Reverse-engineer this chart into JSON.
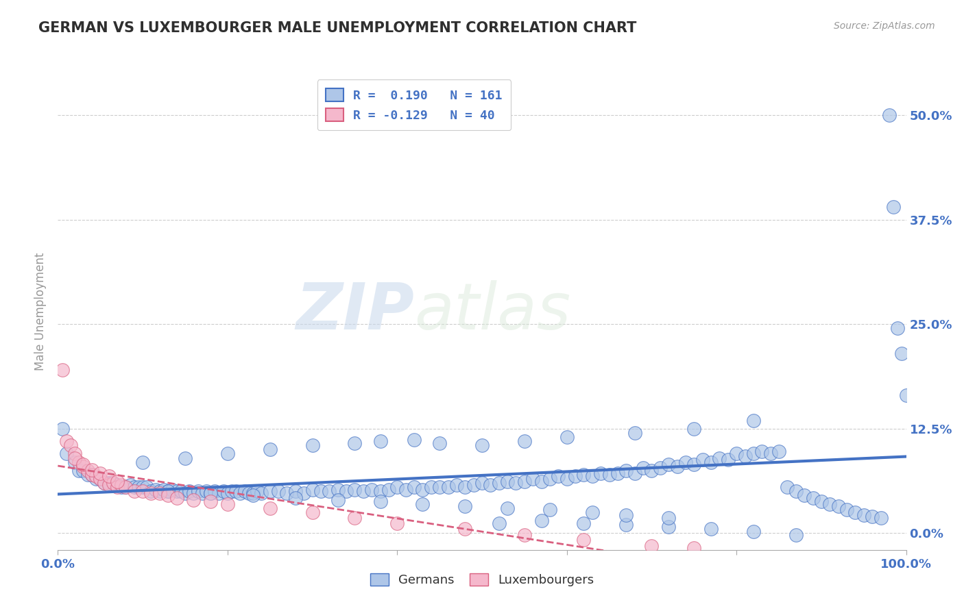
{
  "title": "GERMAN VS LUXEMBOURGER MALE UNEMPLOYMENT CORRELATION CHART",
  "source_text": "Source: ZipAtlas.com",
  "ylabel": "Male Unemployment",
  "xlim": [
    0.0,
    1.0
  ],
  "ylim": [
    -0.02,
    0.55
  ],
  "yticks": [
    0.0,
    0.125,
    0.25,
    0.375,
    0.5
  ],
  "ytick_labels": [
    "0.0%",
    "12.5%",
    "25.0%",
    "37.5%",
    "50.0%"
  ],
  "blue_color": "#aec6e8",
  "pink_color": "#f5b8cc",
  "blue_line_color": "#4472c4",
  "pink_line_color": "#d95f7f",
  "legend_r_blue": "R =  0.190   N = 161",
  "legend_r_pink": "R = -0.129   N = 40",
  "title_color": "#2f2f2f",
  "tick_color": "#4472c4",
  "background_color": "#ffffff",
  "watermark_zip": "ZIP",
  "watermark_atlas": "atlas",
  "grid_color": "#c8c8c8",
  "blue_scatter_x": [
    0.005,
    0.01,
    0.02,
    0.025,
    0.03,
    0.035,
    0.04,
    0.045,
    0.05,
    0.055,
    0.06,
    0.065,
    0.07,
    0.075,
    0.08,
    0.085,
    0.09,
    0.095,
    0.1,
    0.105,
    0.11,
    0.115,
    0.12,
    0.125,
    0.13,
    0.135,
    0.14,
    0.145,
    0.15,
    0.155,
    0.16,
    0.165,
    0.17,
    0.175,
    0.18,
    0.185,
    0.19,
    0.195,
    0.2,
    0.205,
    0.21,
    0.215,
    0.22,
    0.225,
    0.23,
    0.235,
    0.24,
    0.25,
    0.26,
    0.27,
    0.28,
    0.29,
    0.3,
    0.31,
    0.32,
    0.33,
    0.34,
    0.35,
    0.36,
    0.37,
    0.38,
    0.39,
    0.4,
    0.41,
    0.42,
    0.43,
    0.44,
    0.45,
    0.46,
    0.47,
    0.48,
    0.49,
    0.5,
    0.51,
    0.52,
    0.53,
    0.54,
    0.55,
    0.56,
    0.57,
    0.58,
    0.59,
    0.6,
    0.61,
    0.62,
    0.63,
    0.64,
    0.65,
    0.66,
    0.67,
    0.68,
    0.69,
    0.7,
    0.71,
    0.72,
    0.73,
    0.74,
    0.75,
    0.76,
    0.77,
    0.78,
    0.79,
    0.8,
    0.81,
    0.82,
    0.83,
    0.84,
    0.85,
    0.86,
    0.87,
    0.88,
    0.89,
    0.9,
    0.91,
    0.92,
    0.93,
    0.94,
    0.95,
    0.96,
    0.97,
    0.98,
    0.985,
    0.99,
    0.995,
    1.0,
    0.82,
    0.75,
    0.68,
    0.6,
    0.55,
    0.5,
    0.45,
    0.42,
    0.38,
    0.35,
    0.3,
    0.25,
    0.2,
    0.15,
    0.1,
    0.52,
    0.57,
    0.62,
    0.67,
    0.72,
    0.77,
    0.82,
    0.87,
    0.72,
    0.67,
    0.63,
    0.58,
    0.53,
    0.48,
    0.43,
    0.38,
    0.33,
    0.28,
    0.23,
    0.18,
    0.13
  ],
  "blue_scatter_y": [
    0.125,
    0.095,
    0.085,
    0.075,
    0.075,
    0.07,
    0.07,
    0.065,
    0.065,
    0.06,
    0.06,
    0.06,
    0.058,
    0.055,
    0.055,
    0.058,
    0.055,
    0.055,
    0.055,
    0.055,
    0.05,
    0.052,
    0.05,
    0.052,
    0.05,
    0.052,
    0.05,
    0.05,
    0.048,
    0.05,
    0.048,
    0.05,
    0.048,
    0.05,
    0.048,
    0.05,
    0.048,
    0.05,
    0.048,
    0.05,
    0.05,
    0.048,
    0.05,
    0.048,
    0.048,
    0.05,
    0.048,
    0.05,
    0.05,
    0.048,
    0.05,
    0.048,
    0.052,
    0.05,
    0.05,
    0.052,
    0.05,
    0.052,
    0.05,
    0.052,
    0.05,
    0.052,
    0.055,
    0.052,
    0.055,
    0.052,
    0.055,
    0.055,
    0.055,
    0.058,
    0.055,
    0.058,
    0.06,
    0.058,
    0.06,
    0.062,
    0.06,
    0.062,
    0.065,
    0.062,
    0.065,
    0.068,
    0.065,
    0.068,
    0.07,
    0.068,
    0.072,
    0.07,
    0.072,
    0.075,
    0.072,
    0.078,
    0.075,
    0.078,
    0.082,
    0.08,
    0.085,
    0.082,
    0.088,
    0.085,
    0.09,
    0.088,
    0.095,
    0.092,
    0.095,
    0.098,
    0.095,
    0.098,
    0.055,
    0.05,
    0.045,
    0.042,
    0.038,
    0.035,
    0.032,
    0.028,
    0.025,
    0.022,
    0.02,
    0.018,
    0.5,
    0.39,
    0.245,
    0.215,
    0.165,
    0.135,
    0.125,
    0.12,
    0.115,
    0.11,
    0.105,
    0.108,
    0.112,
    0.11,
    0.108,
    0.105,
    0.1,
    0.095,
    0.09,
    0.085,
    0.012,
    0.015,
    0.012,
    0.01,
    0.008,
    0.005,
    0.002,
    -0.002,
    0.018,
    0.022,
    0.025,
    0.028,
    0.03,
    0.032,
    0.035,
    0.038,
    0.04,
    0.042,
    0.045,
    0.048,
    0.05
  ],
  "pink_scatter_x": [
    0.005,
    0.01,
    0.015,
    0.02,
    0.025,
    0.03,
    0.035,
    0.04,
    0.045,
    0.05,
    0.055,
    0.06,
    0.065,
    0.07,
    0.075,
    0.08,
    0.09,
    0.1,
    0.11,
    0.12,
    0.13,
    0.14,
    0.16,
    0.18,
    0.2,
    0.25,
    0.3,
    0.35,
    0.4,
    0.48,
    0.55,
    0.62,
    0.7,
    0.75,
    0.02,
    0.03,
    0.04,
    0.05,
    0.06,
    0.07
  ],
  "pink_scatter_y": [
    0.195,
    0.11,
    0.105,
    0.095,
    0.085,
    0.08,
    0.075,
    0.07,
    0.068,
    0.065,
    0.06,
    0.058,
    0.06,
    0.055,
    0.058,
    0.055,
    0.05,
    0.05,
    0.048,
    0.048,
    0.045,
    0.042,
    0.04,
    0.038,
    0.035,
    0.03,
    0.025,
    0.018,
    0.012,
    0.005,
    -0.002,
    -0.008,
    -0.015,
    -0.018,
    0.09,
    0.082,
    0.076,
    0.072,
    0.068,
    0.062
  ]
}
